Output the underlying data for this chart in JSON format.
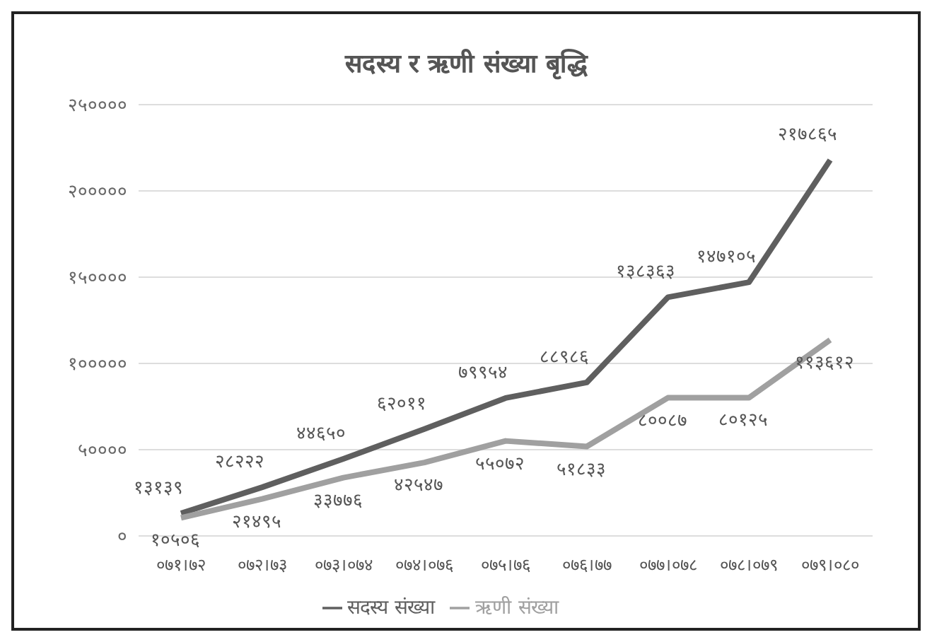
{
  "chart_data": {
    "type": "line",
    "title": "सदस्य र ऋणी संख्या बृद्धि",
    "categories": [
      "०७१।७२",
      "०७२।७३",
      "०७३।०७४",
      "०७४।०७६",
      "०७५।७६",
      "०७६।७७",
      "०७७।०७८",
      "०७८।०७९",
      "०७९।०८०"
    ],
    "series": [
      {
        "name": "सदस्य संख्या",
        "color": "#5f5f5f",
        "values": [
          13139,
          28222,
          44650,
          62011,
          79954,
          88986,
          138363,
          147105,
          217865
        ],
        "value_labels": [
          "१३१३९",
          "२८२२२",
          "४४६५०",
          "६२०११",
          "७९९५४",
          "८८९८६",
          "१३८३६३",
          "१४७१०५",
          "२१७८६५"
        ]
      },
      {
        "name": "ऋणी संख्या",
        "color": "#a0a0a0",
        "values": [
          10506,
          21495,
          33776,
          42547,
          55072,
          51833,
          80087,
          80125,
          113612
        ],
        "value_labels": [
          "१०५०६",
          "२१४९५",
          "३३७७६",
          "४२५४७",
          "५५०७२",
          "५१८३३",
          "८००८७",
          "८०१२५",
          "११३६१२"
        ]
      }
    ],
    "ylim": [
      0,
      250000
    ],
    "yticks": [
      {
        "value": 0,
        "label": "०"
      },
      {
        "value": 50000,
        "label": "५००००"
      },
      {
        "value": 100000,
        "label": "१०००००"
      },
      {
        "value": 150000,
        "label": "१५००००"
      },
      {
        "value": 200000,
        "label": "२०००००"
      },
      {
        "value": 250000,
        "label": "२५००००"
      }
    ],
    "grid": "y",
    "legend": "bottom",
    "marker": "none",
    "line_style": "solid"
  }
}
